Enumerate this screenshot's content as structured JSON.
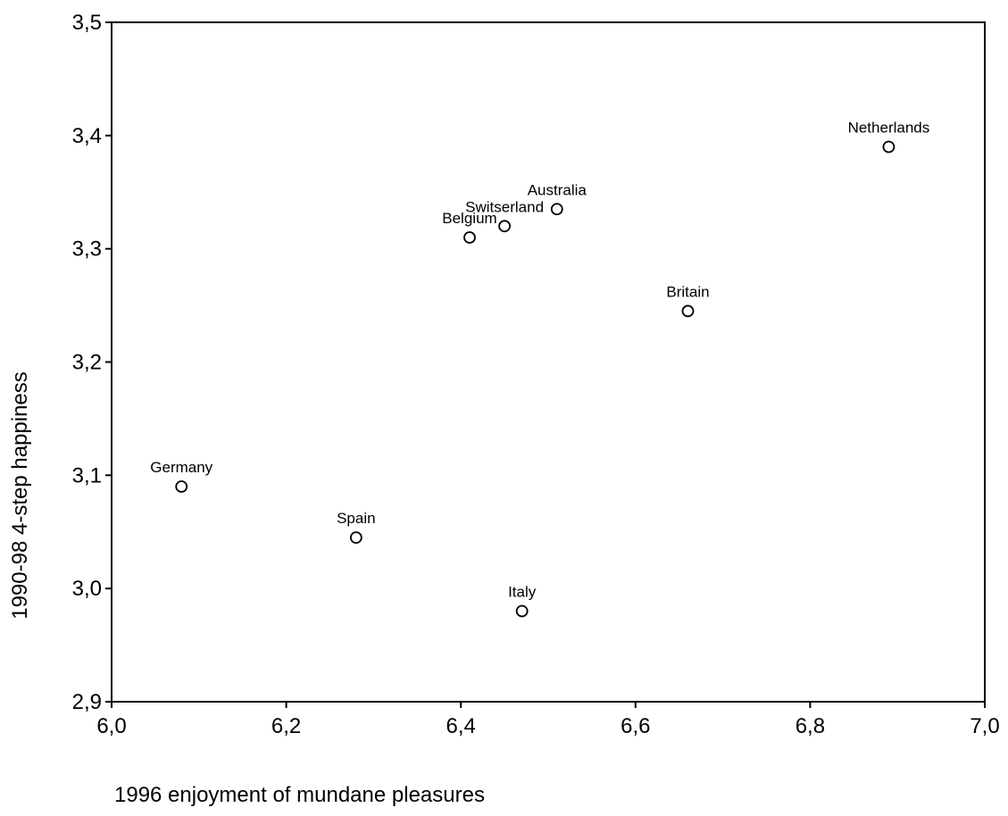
{
  "chart_data": {
    "type": "scatter",
    "xlabel": "1996  enjoyment of mundane pleasures",
    "ylabel": "1990-98 4-step happiness",
    "xlim": [
      6.0,
      7.0
    ],
    "ylim": [
      2.9,
      3.5
    ],
    "x_ticks": [
      "6,0",
      "6,2",
      "6,4",
      "6,6",
      "6,8",
      "7,0"
    ],
    "y_ticks": [
      "2,9",
      "3,0",
      "3,1",
      "3,2",
      "3,3",
      "3,4",
      "3,5"
    ],
    "marker": "open-circle",
    "grid": false,
    "points": [
      {
        "label": "Netherlands",
        "x": 6.89,
        "y": 3.39
      },
      {
        "label": "Australia",
        "x": 6.51,
        "y": 3.335
      },
      {
        "label": "Switserland",
        "x": 6.45,
        "y": 3.32
      },
      {
        "label": "Belgium",
        "x": 6.41,
        "y": 3.31
      },
      {
        "label": "Britain",
        "x": 6.66,
        "y": 3.245
      },
      {
        "label": "Germany",
        "x": 6.08,
        "y": 3.09
      },
      {
        "label": "Spain",
        "x": 6.28,
        "y": 3.045
      },
      {
        "label": "Italy",
        "x": 6.47,
        "y": 2.98
      }
    ]
  }
}
